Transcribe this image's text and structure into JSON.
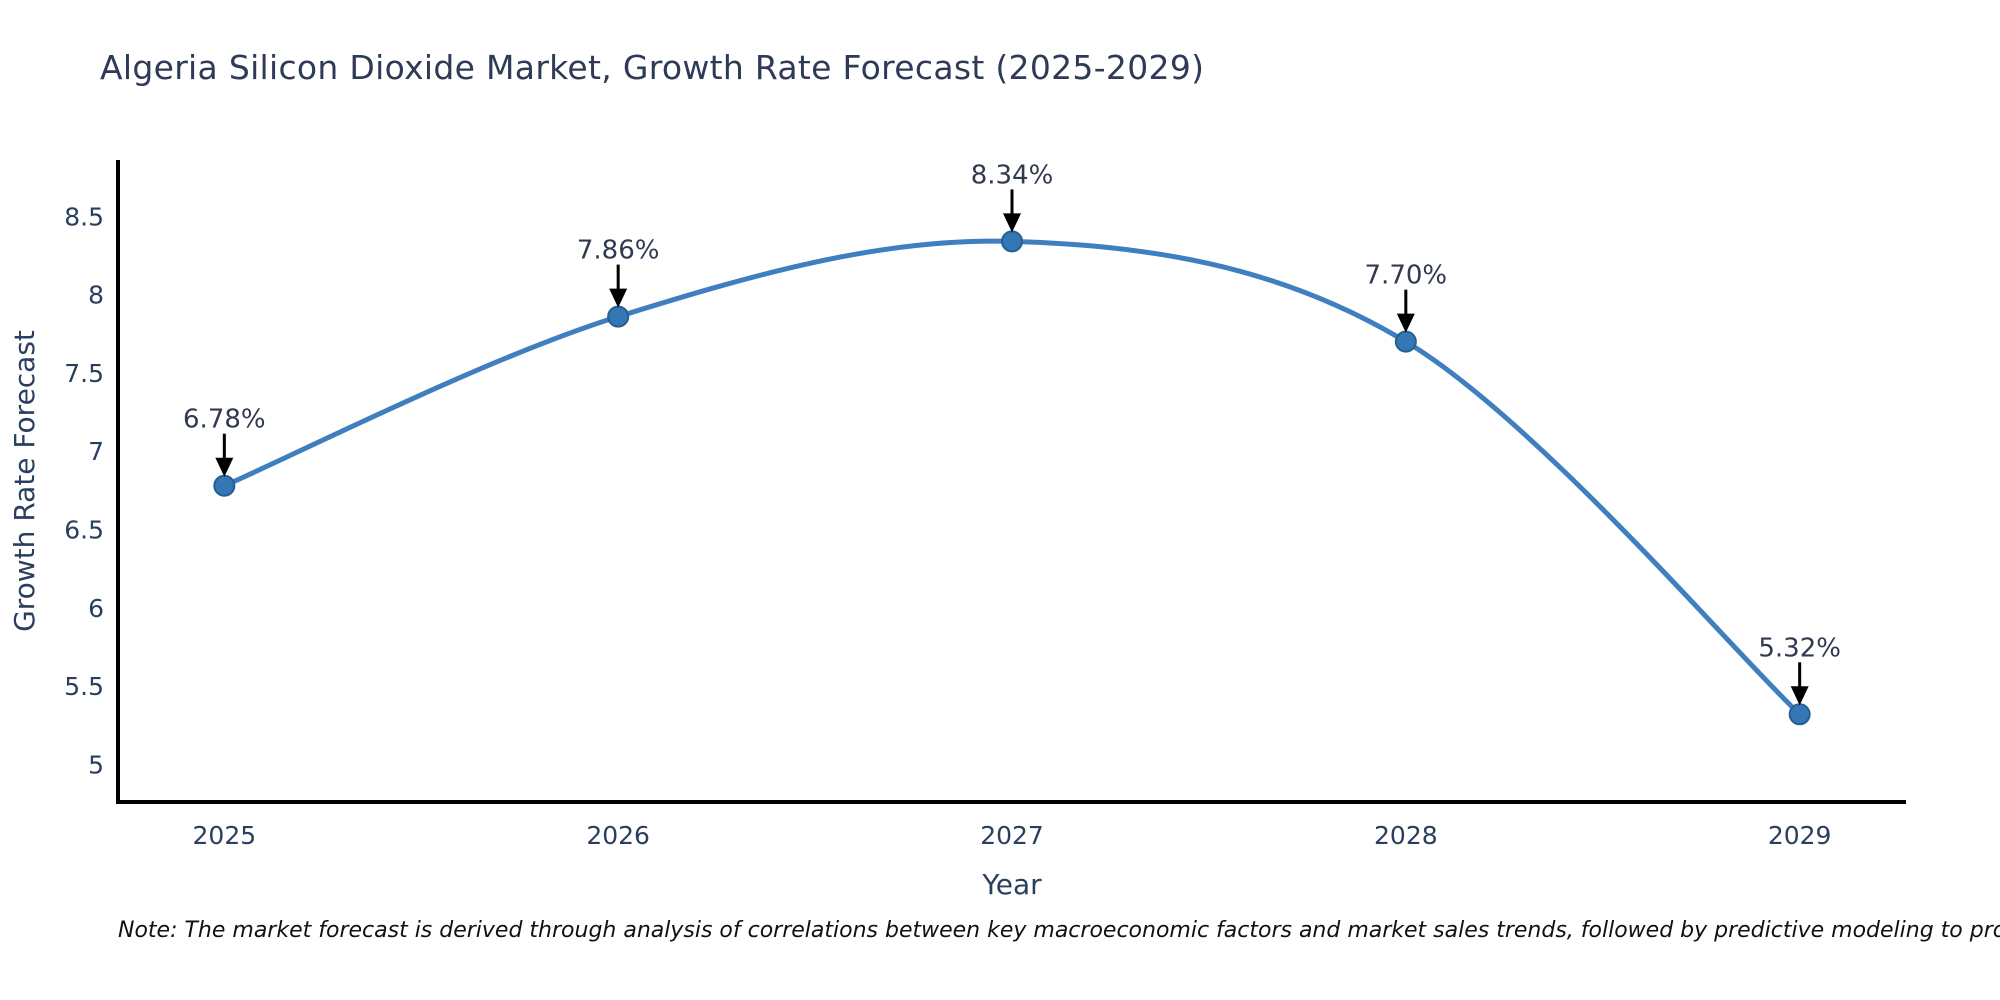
{
  "title": "Algeria Silicon Dioxide Market, Growth Rate Forecast (2025-2029)",
  "footnote": "Note: The market forecast is derived through analysis of correlations between key macroeconomic factors and market sales trends, followed by predictive modeling to project future sales",
  "chart_data": {
    "type": "line",
    "title": "Algeria Silicon Dioxide Market, Growth Rate Forecast (2025-2029)",
    "xlabel": "Year",
    "ylabel": "Growth Rate Forecast",
    "x": [
      2025,
      2026,
      2027,
      2028,
      2029
    ],
    "series": [
      {
        "name": "Growth Rate Forecast",
        "values": [
          6.78,
          7.86,
          8.34,
          7.7,
          5.32
        ]
      }
    ],
    "point_labels": [
      "6.78%",
      "7.86%",
      "8.34%",
      "7.70%",
      "5.32%"
    ],
    "yticks": [
      5,
      5.5,
      6,
      6.5,
      7,
      7.5,
      8,
      8.5
    ],
    "ylim": [
      4.76,
      8.86
    ],
    "xlim": [
      2024.73,
      2029.27
    ],
    "line_shape": "spline",
    "grid": false,
    "legend": "none",
    "annotations_have_arrows": true,
    "colors": {
      "line": "#3f7fbf",
      "marker": "#3577b4",
      "marker_edge": "#265f91",
      "axis": "#000000",
      "tick_text": "#2a3f5f",
      "axis_title_text": "#2a3f5f",
      "title_text": "#2e3a56",
      "annotation_text": "#30394f",
      "arrow": "#000000",
      "note_text": "#111111",
      "background": "#ffffff"
    }
  }
}
